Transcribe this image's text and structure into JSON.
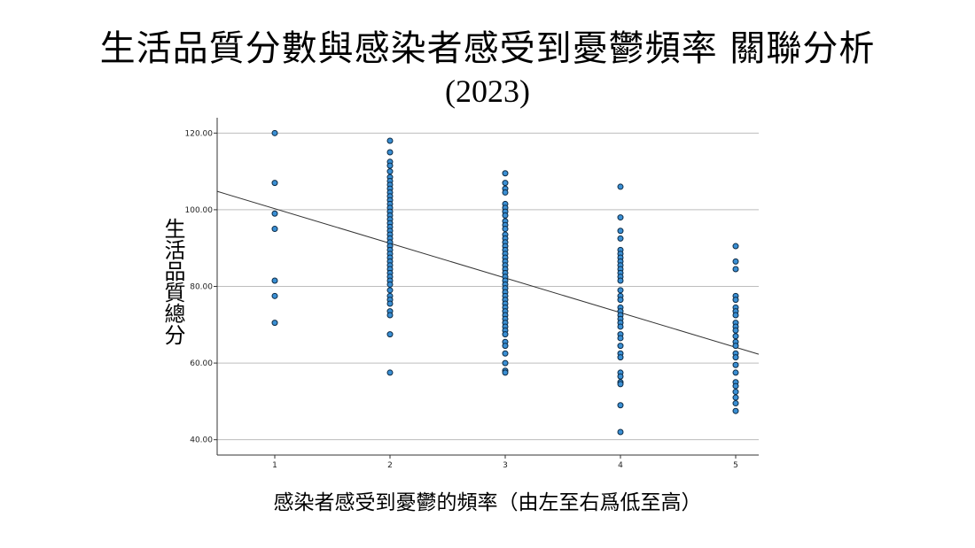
{
  "chart_data": {
    "type": "scatter",
    "title_line1": "生活品質分數與感染者感受到憂鬱頻率 關聯分析",
    "title_line2": "(2023)",
    "xlabel": "感染者感受到憂鬱的頻率（由左至右爲低至高）",
    "ylabel": "生活品質總分",
    "x_ticks": [
      "1",
      "2",
      "3",
      "4",
      "5"
    ],
    "y_ticks": [
      "40.00",
      "60.00",
      "80.00",
      "100.00",
      "120.00"
    ],
    "xlim": [
      0.5,
      5.2
    ],
    "ylim": [
      36,
      124
    ],
    "grid": "horizontal",
    "colors": {
      "point_fill": "#3a8fd4",
      "point_stroke": "#0d2a44",
      "grid": "#bdbdbd",
      "fit_line": "#333333"
    },
    "series": [
      {
        "x": 1,
        "values": [
          120,
          107,
          99,
          95,
          81.5,
          77.5,
          70.5
        ]
      },
      {
        "x": 2,
        "values": [
          118,
          115,
          112.5,
          111.5,
          110,
          108.5,
          107.5,
          106.5,
          105.5,
          104.5,
          103.5,
          102.5,
          101.5,
          100.5,
          99.5,
          98.5,
          97.5,
          96.5,
          95.5,
          94.5,
          93.5,
          92.5,
          91.5,
          90.5,
          89.5,
          88.5,
          87.5,
          86.5,
          85.5,
          84.5,
          83.5,
          82.5,
          81.5,
          80.5,
          79,
          77.5,
          76.5,
          75.5,
          73.5,
          72.5,
          67.5,
          57.5
        ]
      },
      {
        "x": 3,
        "values": [
          109.5,
          107,
          105.5,
          104.5,
          101.5,
          100.5,
          99.5,
          98.5,
          97,
          96,
          95,
          93.5,
          92.5,
          91.5,
          90.5,
          89.5,
          88.5,
          87.5,
          86.5,
          85.5,
          84.5,
          83.5,
          82.5,
          81.5,
          80.5,
          79.5,
          78.5,
          77.5,
          76.5,
          75.5,
          74.5,
          73.5,
          72.5,
          71.5,
          70.5,
          69.5,
          68.5,
          67.5,
          65.5,
          64.5,
          62.5,
          60,
          58,
          57.5
        ]
      },
      {
        "x": 4,
        "values": [
          106,
          98,
          94.5,
          92.5,
          89.5,
          88.5,
          87.5,
          86.5,
          85.5,
          84.5,
          83.5,
          82.5,
          81.5,
          79,
          77.5,
          76.5,
          74.5,
          73.5,
          72.5,
          71.5,
          70.5,
          69.5,
          67.5,
          66.5,
          64.5,
          62.5,
          61.5,
          57.5,
          56.5,
          55,
          54.5,
          49,
          42
        ]
      },
      {
        "x": 5,
        "values": [
          90.5,
          86.5,
          84.5,
          77.5,
          76.5,
          74.5,
          73.5,
          72.5,
          70.5,
          69.5,
          68.5,
          67,
          65.5,
          64.5,
          62.5,
          61.5,
          59.5,
          57.5,
          55,
          54,
          52.5,
          51,
          49.5,
          47.5
        ]
      }
    ],
    "fit_line": {
      "x": [
        0.5,
        5.2
      ],
      "y": [
        104.8,
        62.3
      ]
    }
  }
}
